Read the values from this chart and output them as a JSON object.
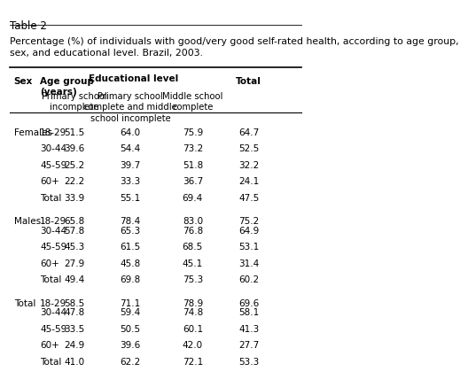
{
  "title_line1": "Table 2",
  "caption": "Percentage (%) of individuals with good/very good self-rated health, according to age group,\nsex, and educational level. Brazil, 2003.",
  "col_headers": {
    "sex": "Sex",
    "age": "Age group\n(years)",
    "edu_label": "Educational level",
    "col1": "Primary school\nincomplete",
    "col2": "Primary school\ncomplete and middle\nschool incomplete",
    "col3": "Middle school\ncomplete",
    "total": "Total"
  },
  "rows": [
    {
      "sex": "Females",
      "age": "18-29",
      "c1": "51.5",
      "c2": "64.0",
      "c3": "75.9",
      "tot": "64.7"
    },
    {
      "sex": "",
      "age": "30-44",
      "c1": "39.6",
      "c2": "54.4",
      "c3": "73.2",
      "tot": "52.5"
    },
    {
      "sex": "",
      "age": "45-59",
      "c1": "25.2",
      "c2": "39.7",
      "c3": "51.8",
      "tot": "32.2"
    },
    {
      "sex": "",
      "age": "60+",
      "c1": "22.2",
      "c2": "33.3",
      "c3": "36.7",
      "tot": "24.1"
    },
    {
      "sex": "",
      "age": "Total",
      "c1": "33.9",
      "c2": "55.1",
      "c3": "69.4",
      "tot": "47.5"
    },
    {
      "sex": "Males",
      "age": "18-29",
      "c1": "65.8",
      "c2": "78.4",
      "c3": "83.0",
      "tot": "75.2"
    },
    {
      "sex": "",
      "age": "30-44",
      "c1": "57.8",
      "c2": "65.3",
      "c3": "76.8",
      "tot": "64.9"
    },
    {
      "sex": "",
      "age": "45-59",
      "c1": "45.3",
      "c2": "61.5",
      "c3": "68.5",
      "tot": "53.1"
    },
    {
      "sex": "",
      "age": "60+",
      "c1": "27.9",
      "c2": "45.8",
      "c3": "45.1",
      "tot": "31.4"
    },
    {
      "sex": "",
      "age": "Total",
      "c1": "49.4",
      "c2": "69.8",
      "c3": "75.3",
      "tot": "60.2"
    },
    {
      "sex": "Total",
      "age": "18-29",
      "c1": "58.5",
      "c2": "71.1",
      "c3": "78.9",
      "tot": "69.6"
    },
    {
      "sex": "",
      "age": "30-44",
      "c1": "47.8",
      "c2": "59.4",
      "c3": "74.8",
      "tot": "58.1"
    },
    {
      "sex": "",
      "age": "45-59",
      "c1": "33.5",
      "c2": "50.5",
      "c3": "60.1",
      "tot": "41.3"
    },
    {
      "sex": "",
      "age": "60+",
      "c1": "24.9",
      "c2": "39.6",
      "c3": "42.0",
      "tot": "27.7"
    },
    {
      "sex": "",
      "age": "Total",
      "c1": "41.0",
      "c2": "62.2",
      "c3": "72.1",
      "tot": "53.3"
    }
  ],
  "bg_color": "#ffffff",
  "text_color": "#000000",
  "header_line_color": "#000000",
  "font_size": 7.5,
  "title_font_size": 8.5,
  "caption_font_size": 7.8
}
